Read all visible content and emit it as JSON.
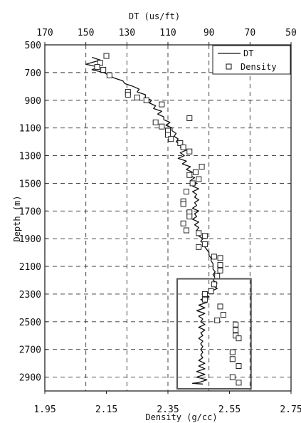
{
  "chart_data": {
    "type": "line",
    "top_axis": {
      "label": "DT (us/ft)",
      "range": [
        170,
        50
      ],
      "ticks": [
        170,
        150,
        130,
        110,
        90,
        70,
        50
      ]
    },
    "bottom_axis": {
      "label": "Density (g/cc)",
      "range": [
        1.95,
        2.75
      ],
      "ticks": [
        "1.95",
        "2.15",
        "2.35",
        "2.55",
        "2.75"
      ]
    },
    "y_axis": {
      "label": "Depth (m)",
      "range": [
        500,
        3000
      ],
      "inverted": true,
      "ticks": [
        500,
        700,
        900,
        1100,
        1300,
        1500,
        1700,
        1900,
        2100,
        2300,
        2500,
        2700,
        2900
      ]
    },
    "grid": "dashed",
    "legend": {
      "position": "top-right",
      "entries": [
        "DT",
        "Density"
      ]
    },
    "series": [
      {
        "name": "DT",
        "axis": "top",
        "style": "line",
        "points": [
          [
            147,
            590
          ],
          [
            143,
            610
          ],
          [
            150,
            640
          ],
          [
            144,
            660
          ],
          [
            147,
            680
          ],
          [
            141,
            700
          ],
          [
            139,
            720
          ],
          [
            136,
            740
          ],
          [
            132,
            760
          ],
          [
            131,
            780
          ],
          [
            127,
            800
          ],
          [
            124,
            820
          ],
          [
            125,
            840
          ],
          [
            121,
            860
          ],
          [
            121,
            880
          ],
          [
            118,
            900
          ],
          [
            119,
            920
          ],
          [
            116,
            940
          ],
          [
            117,
            960
          ],
          [
            113,
            980
          ],
          [
            115,
            1000
          ],
          [
            112,
            1020
          ],
          [
            112,
            1040
          ],
          [
            109,
            1060
          ],
          [
            111,
            1080
          ],
          [
            108,
            1100
          ],
          [
            108,
            1120
          ],
          [
            106,
            1140
          ],
          [
            107,
            1160
          ],
          [
            105,
            1180
          ],
          [
            106,
            1200
          ],
          [
            103,
            1220
          ],
          [
            104,
            1240
          ],
          [
            101,
            1260
          ],
          [
            104,
            1280
          ],
          [
            102,
            1300
          ],
          [
            105,
            1320
          ],
          [
            101,
            1340
          ],
          [
            103,
            1360
          ],
          [
            99,
            1380
          ],
          [
            101,
            1400
          ],
          [
            98,
            1420
          ],
          [
            100,
            1440
          ],
          [
            97,
            1460
          ],
          [
            99,
            1480
          ],
          [
            96,
            1500
          ],
          [
            98,
            1520
          ],
          [
            95,
            1540
          ],
          [
            98,
            1560
          ],
          [
            96,
            1580
          ],
          [
            97,
            1600
          ],
          [
            95,
            1620
          ],
          [
            97,
            1640
          ],
          [
            96,
            1660
          ],
          [
            98,
            1680
          ],
          [
            95,
            1700
          ],
          [
            97,
            1720
          ],
          [
            96,
            1740
          ],
          [
            98,
            1760
          ],
          [
            95,
            1780
          ],
          [
            97,
            1800
          ],
          [
            95,
            1820
          ],
          [
            96,
            1840
          ],
          [
            94,
            1860
          ],
          [
            95,
            1880
          ],
          [
            93,
            1900
          ],
          [
            94,
            1920
          ],
          [
            92,
            1940
          ],
          [
            92,
            1960
          ],
          [
            91,
            1980
          ],
          [
            90,
            2000
          ],
          [
            90,
            2020
          ],
          [
            89,
            2040
          ],
          [
            89,
            2060
          ],
          [
            88,
            2080
          ],
          [
            88,
            2100
          ],
          [
            88,
            2120
          ],
          [
            87,
            2140
          ],
          [
            88,
            2160
          ],
          [
            87,
            2180
          ],
          [
            88,
            2200
          ],
          [
            86,
            2220
          ],
          [
            88,
            2240
          ],
          [
            86,
            2260
          ],
          [
            89,
            2280
          ],
          [
            92,
            2300
          ],
          [
            90,
            2320
          ],
          [
            94,
            2340
          ],
          [
            91,
            2360
          ],
          [
            95,
            2380
          ],
          [
            92,
            2400
          ],
          [
            96,
            2420
          ],
          [
            92,
            2440
          ],
          [
            95,
            2460
          ],
          [
            93,
            2480
          ],
          [
            94,
            2500
          ],
          [
            92,
            2520
          ],
          [
            95,
            2540
          ],
          [
            92,
            2560
          ],
          [
            94,
            2580
          ],
          [
            93,
            2600
          ],
          [
            95,
            2620
          ],
          [
            93,
            2640
          ],
          [
            94,
            2660
          ],
          [
            93,
            2680
          ],
          [
            94,
            2700
          ],
          [
            93,
            2720
          ],
          [
            94,
            2740
          ],
          [
            93,
            2760
          ],
          [
            95,
            2780
          ],
          [
            92,
            2800
          ],
          [
            95,
            2820
          ],
          [
            92,
            2840
          ],
          [
            96,
            2860
          ],
          [
            92,
            2880
          ],
          [
            96,
            2900
          ],
          [
            91,
            2920
          ],
          [
            95,
            2940
          ],
          [
            98,
            2945
          ],
          [
            93,
            2950
          ]
        ]
      },
      {
        "name": "Density",
        "axis": "bottom",
        "style": "square-markers",
        "points": [
          [
            2.15,
            580
          ],
          [
            2.13,
            630
          ],
          [
            2.12,
            660
          ],
          [
            2.14,
            680
          ],
          [
            2.16,
            720
          ],
          [
            2.22,
            840
          ],
          [
            2.22,
            860
          ],
          [
            2.25,
            880
          ],
          [
            2.28,
            900
          ],
          [
            2.33,
            930
          ],
          [
            2.42,
            1030
          ],
          [
            2.31,
            1060
          ],
          [
            2.33,
            1090
          ],
          [
            2.35,
            1120
          ],
          [
            2.35,
            1150
          ],
          [
            2.36,
            1180
          ],
          [
            2.39,
            1210
          ],
          [
            2.4,
            1240
          ],
          [
            2.42,
            1270
          ],
          [
            2.46,
            1380
          ],
          [
            2.44,
            1420
          ],
          [
            2.42,
            1440
          ],
          [
            2.45,
            1470
          ],
          [
            2.43,
            1500
          ],
          [
            2.41,
            1560
          ],
          [
            2.4,
            1630
          ],
          [
            2.4,
            1650
          ],
          [
            2.42,
            1710
          ],
          [
            2.42,
            1740
          ],
          [
            2.4,
            1790
          ],
          [
            2.41,
            1840
          ],
          [
            2.45,
            1860
          ],
          [
            2.47,
            1880
          ],
          [
            2.47,
            1940
          ],
          [
            2.45,
            1960
          ],
          [
            2.5,
            2030
          ],
          [
            2.52,
            2040
          ],
          [
            2.52,
            2090
          ],
          [
            2.52,
            2130
          ],
          [
            2.51,
            2170
          ],
          [
            2.5,
            2230
          ],
          [
            2.49,
            2280
          ],
          [
            2.47,
            2300
          ],
          [
            2.47,
            2340
          ],
          [
            2.52,
            2390
          ],
          [
            2.53,
            2450
          ],
          [
            2.51,
            2490
          ],
          [
            2.57,
            2520
          ],
          [
            2.57,
            2560
          ],
          [
            2.57,
            2600
          ],
          [
            2.58,
            2620
          ],
          [
            2.56,
            2720
          ],
          [
            2.56,
            2770
          ],
          [
            2.58,
            2820
          ],
          [
            2.56,
            2900
          ],
          [
            2.58,
            2940
          ]
        ]
      }
    ],
    "annotation": {
      "type": "rectangle",
      "note": "highlighted interval",
      "density_range": [
        2.38,
        2.62
      ],
      "depth_range": [
        2190,
        3010
      ]
    }
  }
}
